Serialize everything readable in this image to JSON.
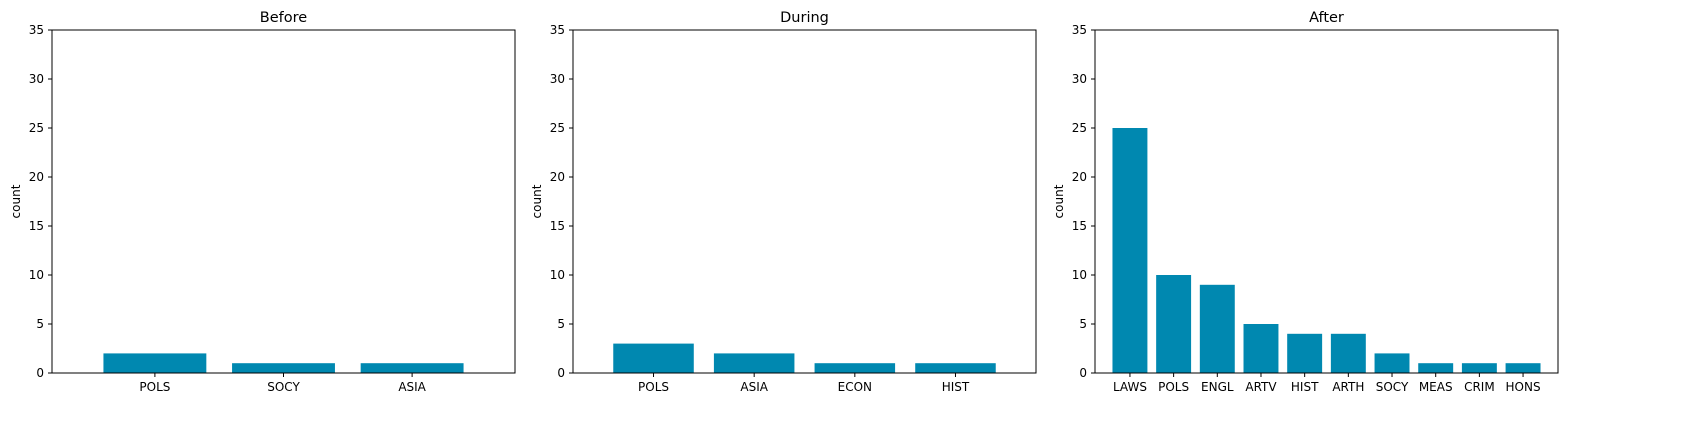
{
  "chart_data": [
    {
      "type": "bar",
      "title": "Before",
      "xlabel": "",
      "ylabel": "count",
      "ylim": [
        0,
        35
      ],
      "yticks": [
        0,
        5,
        10,
        15,
        20,
        25,
        30,
        35
      ],
      "categories": [
        "POLS",
        "SOCY",
        "ASIA"
      ],
      "values": [
        2,
        1,
        1
      ],
      "color": "#0088b0",
      "grid": false
    },
    {
      "type": "bar",
      "title": "During",
      "xlabel": "",
      "ylabel": "count",
      "ylim": [
        0,
        35
      ],
      "yticks": [
        0,
        5,
        10,
        15,
        20,
        25,
        30,
        35
      ],
      "categories": [
        "POLS",
        "ASIA",
        "ECON",
        "HIST"
      ],
      "values": [
        3,
        2,
        1,
        1
      ],
      "color": "#0088b0",
      "grid": false
    },
    {
      "type": "bar",
      "title": "After",
      "xlabel": "",
      "ylabel": "count",
      "ylim": [
        0,
        35
      ],
      "yticks": [
        0,
        5,
        10,
        15,
        20,
        25,
        30,
        35
      ],
      "categories": [
        "LAWS",
        "POLS",
        "ENGL",
        "ARTV",
        "HIST",
        "ARTH",
        "SOCY",
        "MEAS",
        "CRIM",
        "HONS"
      ],
      "values": [
        25,
        10,
        9,
        5,
        4,
        4,
        2,
        1,
        1,
        1
      ],
      "color": "#0088b0",
      "grid": false
    }
  ]
}
